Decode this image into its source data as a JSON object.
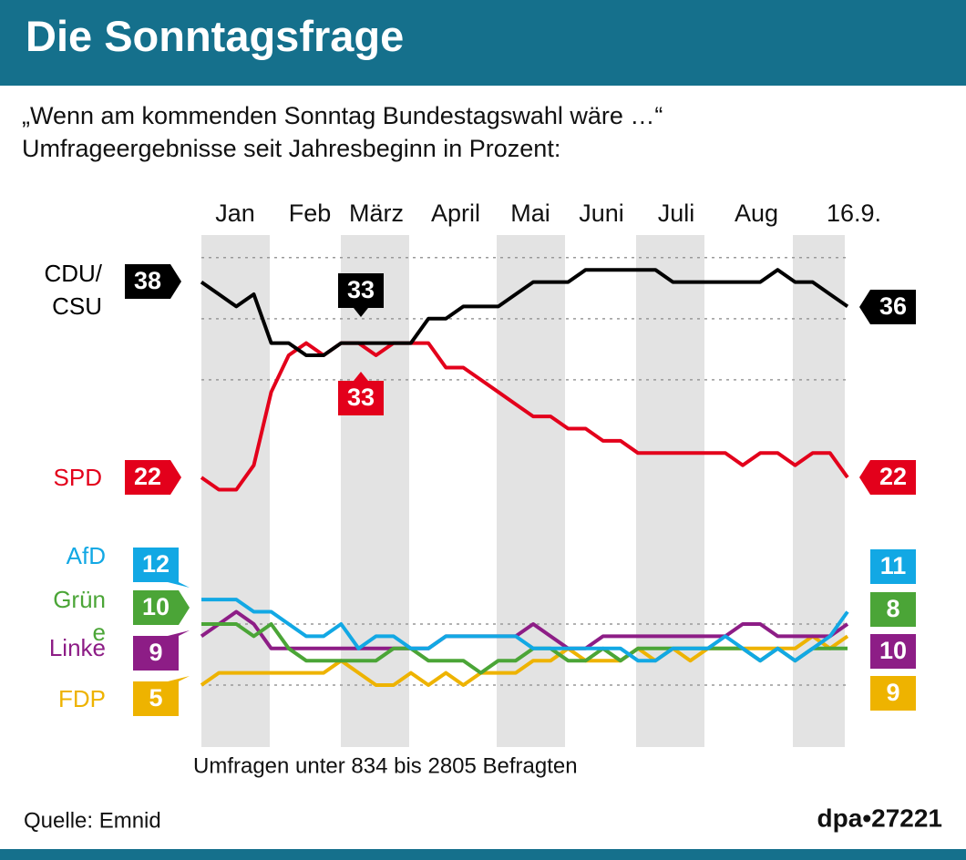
{
  "title": "Die Sonntagsfrage",
  "subtitle": [
    "„Wenn am kommenden Sonntag Bundestagswahl wäre …“",
    "Umfrageergebnisse seit Jahresbeginn in Prozent:"
  ],
  "chart_data": {
    "type": "line",
    "months": [
      "Jan",
      "Feb",
      "März",
      "April",
      "Mai",
      "Juni",
      "Juli",
      "Aug",
      "16.9."
    ],
    "ylim": [
      0,
      42
    ],
    "grid_y": [
      5,
      10,
      30,
      35,
      40
    ],
    "series": [
      {
        "name": "CDU/CSU",
        "color": "#000000",
        "values": [
          38,
          37,
          36,
          37,
          33,
          33,
          32,
          32,
          33,
          33,
          33,
          33,
          33,
          35,
          35,
          36,
          36,
          36,
          37,
          38,
          38,
          38,
          39,
          39,
          39,
          39,
          39,
          38,
          38,
          38,
          38,
          38,
          38,
          39,
          38,
          38,
          37,
          36
        ]
      },
      {
        "name": "SPD",
        "color": "#e3001b",
        "values": [
          22,
          21,
          21,
          23,
          29,
          32,
          33,
          32,
          33,
          33,
          32,
          33,
          33,
          33,
          31,
          31,
          30,
          29,
          28,
          27,
          27,
          26,
          26,
          25,
          25,
          24,
          24,
          24,
          24,
          24,
          24,
          23,
          24,
          24,
          23,
          24,
          24,
          22
        ]
      },
      {
        "name": "AfD",
        "color": "#12a8e4",
        "values": [
          12,
          12,
          12,
          11,
          11,
          10,
          9,
          9,
          10,
          8,
          9,
          9,
          8,
          8,
          9,
          9,
          9,
          9,
          9,
          8,
          8,
          8,
          8,
          8,
          8,
          7,
          7,
          8,
          8,
          8,
          9,
          8,
          7,
          8,
          7,
          8,
          9,
          11
        ]
      },
      {
        "name": "Grüne",
        "color": "#4ba537",
        "values": [
          10,
          10,
          10,
          9,
          10,
          8,
          7,
          7,
          7,
          7,
          7,
          8,
          8,
          7,
          7,
          7,
          6,
          7,
          7,
          8,
          8,
          7,
          7,
          8,
          7,
          8,
          8,
          8,
          8,
          8,
          8,
          8,
          7,
          8,
          7,
          8,
          8,
          8
        ]
      },
      {
        "name": "Linke",
        "color": "#8d1d86",
        "values": [
          9,
          10,
          11,
          10,
          8,
          8,
          8,
          8,
          8,
          8,
          8,
          8,
          8,
          8,
          9,
          9,
          9,
          9,
          9,
          10,
          9,
          8,
          8,
          9,
          9,
          9,
          9,
          9,
          9,
          9,
          9,
          10,
          10,
          9,
          9,
          9,
          9,
          10
        ]
      },
      {
        "name": "FDP",
        "color": "#eeb300",
        "values": [
          5,
          6,
          6,
          6,
          6,
          6,
          6,
          6,
          7,
          6,
          5,
          5,
          6,
          5,
          6,
          5,
          6,
          6,
          6,
          7,
          7,
          8,
          7,
          7,
          7,
          8,
          7,
          8,
          7,
          8,
          8,
          8,
          8,
          8,
          8,
          9,
          8,
          9
        ]
      }
    ]
  },
  "note": "Umfragen unter 834 bis 2805 Befragten",
  "source": "Quelle: Emnid",
  "credit": "dpa•27221"
}
